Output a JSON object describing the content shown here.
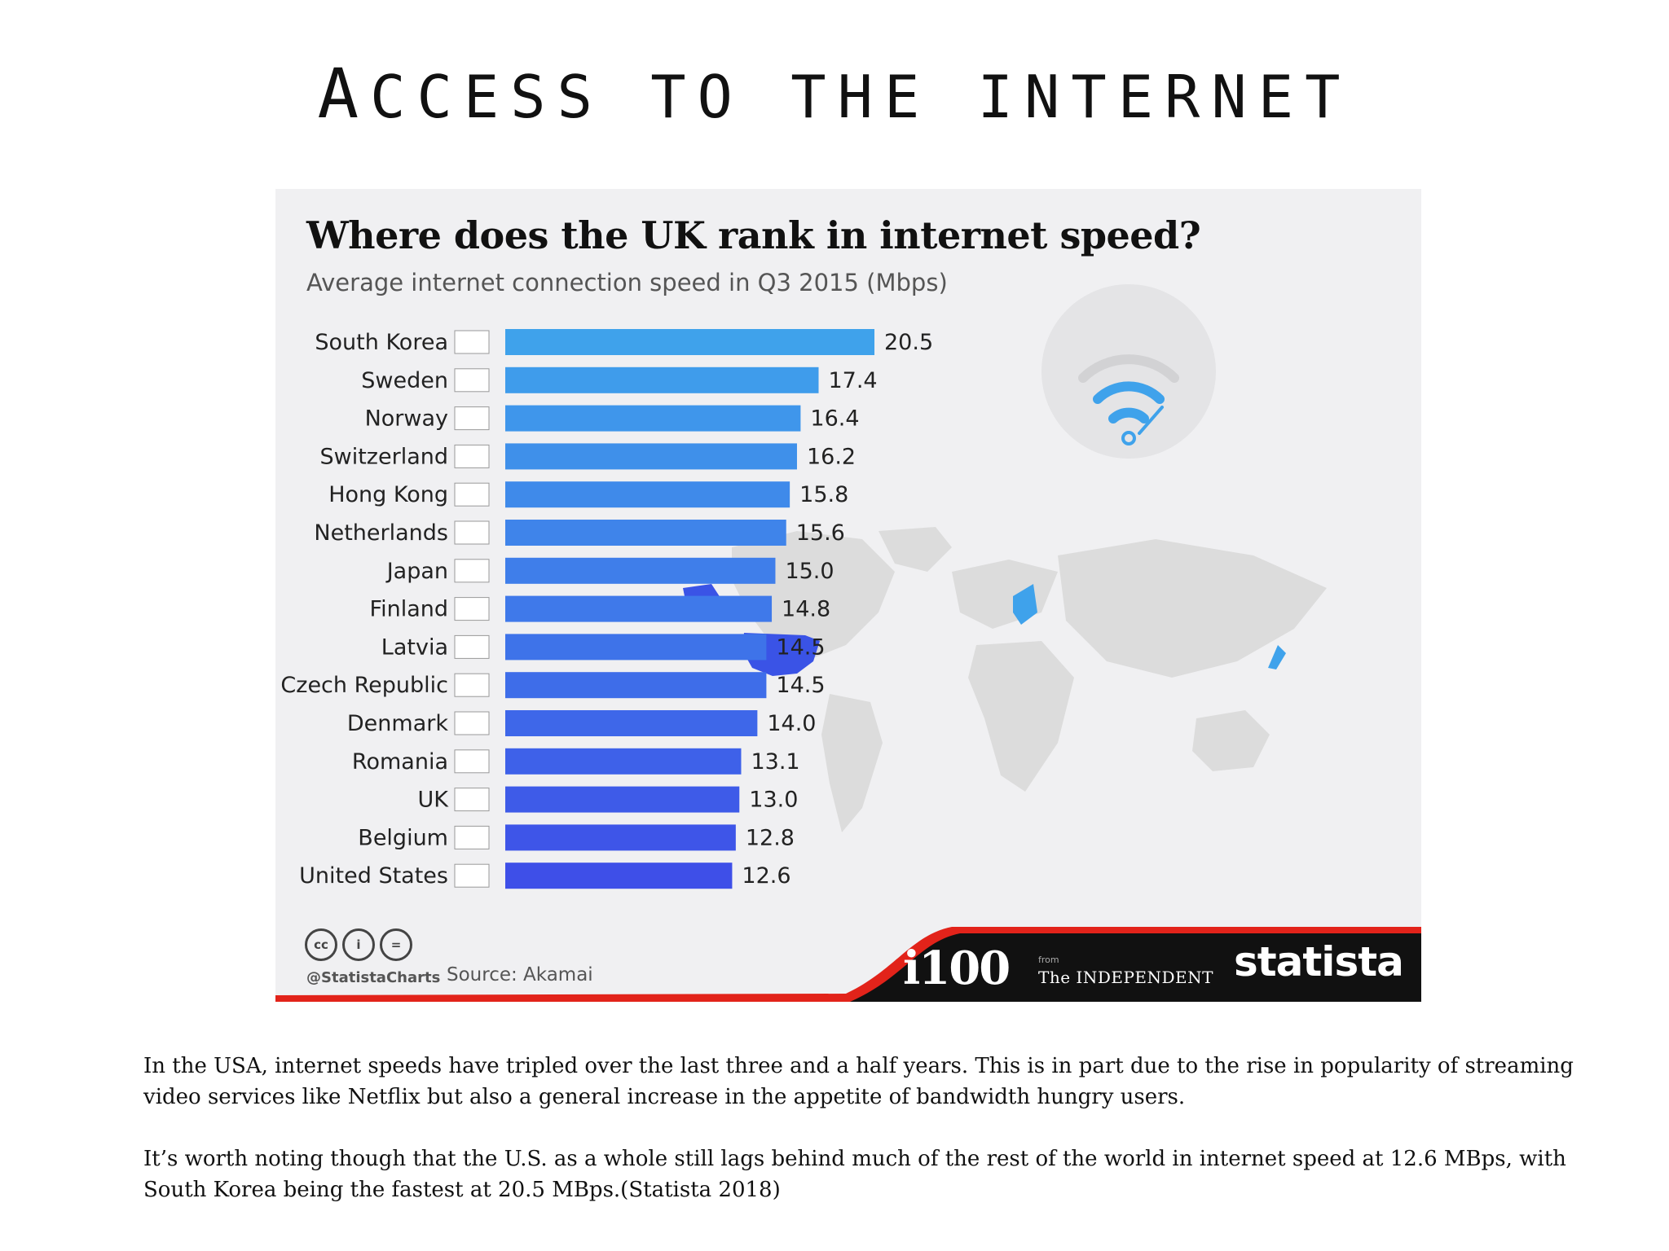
{
  "slide": {
    "title_cap": "A",
    "title_rest": "CCESS TO THE INTERNET"
  },
  "chart_data": {
    "type": "bar",
    "orientation": "horizontal",
    "title": "Where does the UK rank in internet speed?",
    "subtitle": "Average internet connection speed in Q3 2015 (Mbps)",
    "categories": [
      "South Korea",
      "Sweden",
      "Norway",
      "Switzerland",
      "Hong Kong",
      "Netherlands",
      "Japan",
      "Finland",
      "Latvia",
      "Czech Republic",
      "Denmark",
      "Romania",
      "UK",
      "Belgium",
      "United States"
    ],
    "values": [
      20.5,
      17.4,
      16.4,
      16.2,
      15.8,
      15.6,
      15.0,
      14.8,
      14.5,
      14.5,
      14.0,
      13.1,
      13.0,
      12.8,
      12.6
    ],
    "value_labels": [
      "20.5",
      "17.4",
      "16.4",
      "16.2",
      "15.8",
      "15.6",
      "15.0",
      "14.8",
      "14.5",
      "14.5",
      "14.0",
      "13.1",
      "13.0",
      "12.8",
      "12.6"
    ],
    "xlim": [
      0,
      20.5
    ],
    "grid": false,
    "legend": "none",
    "bar_color_top": "#3fa2eb",
    "bar_color_bottom": "#3e4fe8",
    "highlight_color": "#3a53e6"
  },
  "footer": {
    "credit": "@StatistaCharts",
    "source": "Source: Akamai",
    "brand_i100": "i100",
    "brand_from": "from",
    "brand_independent": "The INDEPENDENT",
    "brand_statista": "statista",
    "cc_icons": [
      "cc",
      "i",
      "="
    ],
    "band_color": "#111111",
    "stripe_color": "#e2231a"
  },
  "decor": {
    "wifi_icon_color": "#3fa2eb",
    "map_color": "#dcdcdc"
  },
  "body": {
    "paragraph_1": "In the USA, internet speeds have tripled over the last three and a half years. This is in part due to the rise in popularity of streaming video services like Netflix but also a general increase in the appetite of bandwidth hungry users.",
    "paragraph_2": "It’s worth noting though that the U.S. as a whole still lags behind much of the rest of the world in internet speed at 12.6 MBps, with South Korea being the fastest at 20.5 MBps.(Statista 2018)"
  }
}
